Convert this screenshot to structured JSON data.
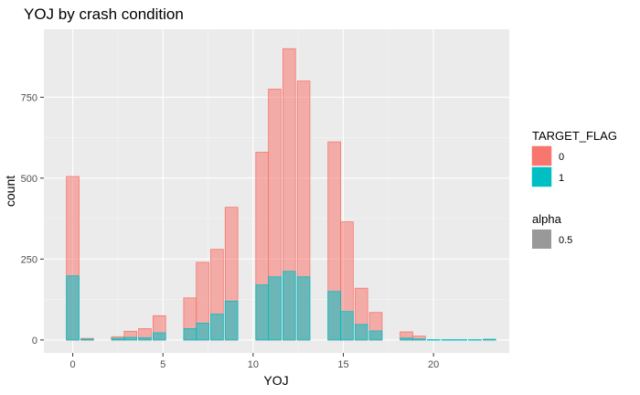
{
  "chart_data": {
    "type": "bar",
    "title": "YOJ by crash condition",
    "xlabel": "YOJ",
    "ylabel": "count",
    "xlim": [
      -1.6,
      24.2
    ],
    "ylim": [
      -40,
      960
    ],
    "x_ticks": [
      0,
      5,
      10,
      15,
      20
    ],
    "y_ticks": [
      0,
      250,
      500,
      750
    ],
    "bin_width": 0.7,
    "grid": true,
    "legend_position": "right",
    "series": [
      {
        "name": "0",
        "color": "#F8766D",
        "points": [
          {
            "x": 0.0,
            "y": 505
          },
          {
            "x": 0.8,
            "y": 5
          },
          {
            "x": 2.5,
            "y": 10
          },
          {
            "x": 3.2,
            "y": 27
          },
          {
            "x": 4.0,
            "y": 35
          },
          {
            "x": 4.8,
            "y": 75
          },
          {
            "x": 6.5,
            "y": 130
          },
          {
            "x": 7.2,
            "y": 240
          },
          {
            "x": 8.0,
            "y": 280
          },
          {
            "x": 8.8,
            "y": 410
          },
          {
            "x": 10.5,
            "y": 580
          },
          {
            "x": 11.2,
            "y": 775
          },
          {
            "x": 12.0,
            "y": 900
          },
          {
            "x": 12.8,
            "y": 800
          },
          {
            "x": 14.5,
            "y": 612
          },
          {
            "x": 15.2,
            "y": 365
          },
          {
            "x": 16.0,
            "y": 160
          },
          {
            "x": 16.8,
            "y": 85
          },
          {
            "x": 18.5,
            "y": 25
          },
          {
            "x": 19.2,
            "y": 12
          },
          {
            "x": 23.1,
            "y": 2
          }
        ]
      },
      {
        "name": "1",
        "color": "#00BFC4",
        "points": [
          {
            "x": 0.0,
            "y": 198
          },
          {
            "x": 0.8,
            "y": 2
          },
          {
            "x": 2.5,
            "y": 5
          },
          {
            "x": 3.2,
            "y": 8
          },
          {
            "x": 4.0,
            "y": 7
          },
          {
            "x": 4.8,
            "y": 22
          },
          {
            "x": 6.5,
            "y": 35
          },
          {
            "x": 7.2,
            "y": 52
          },
          {
            "x": 8.0,
            "y": 80
          },
          {
            "x": 8.8,
            "y": 120
          },
          {
            "x": 10.5,
            "y": 170
          },
          {
            "x": 11.2,
            "y": 195
          },
          {
            "x": 12.0,
            "y": 212
          },
          {
            "x": 12.8,
            "y": 195
          },
          {
            "x": 14.5,
            "y": 150
          },
          {
            "x": 15.2,
            "y": 88
          },
          {
            "x": 16.0,
            "y": 48
          },
          {
            "x": 16.8,
            "y": 28
          },
          {
            "x": 18.5,
            "y": 6
          },
          {
            "x": 19.2,
            "y": 3
          },
          {
            "x": 20.0,
            "y": 1
          },
          {
            "x": 20.8,
            "y": 1
          },
          {
            "x": 21.5,
            "y": 1
          },
          {
            "x": 22.3,
            "y": 1
          },
          {
            "x": 23.1,
            "y": 2
          }
        ]
      }
    ],
    "legends": [
      {
        "title": "TARGET_FLAG",
        "items": [
          {
            "label": "0",
            "color": "#F8766D"
          },
          {
            "label": "1",
            "color": "#00BFC4"
          }
        ]
      },
      {
        "title": "alpha",
        "items": [
          {
            "label": "0.5",
            "color": "#999999"
          }
        ]
      }
    ]
  }
}
